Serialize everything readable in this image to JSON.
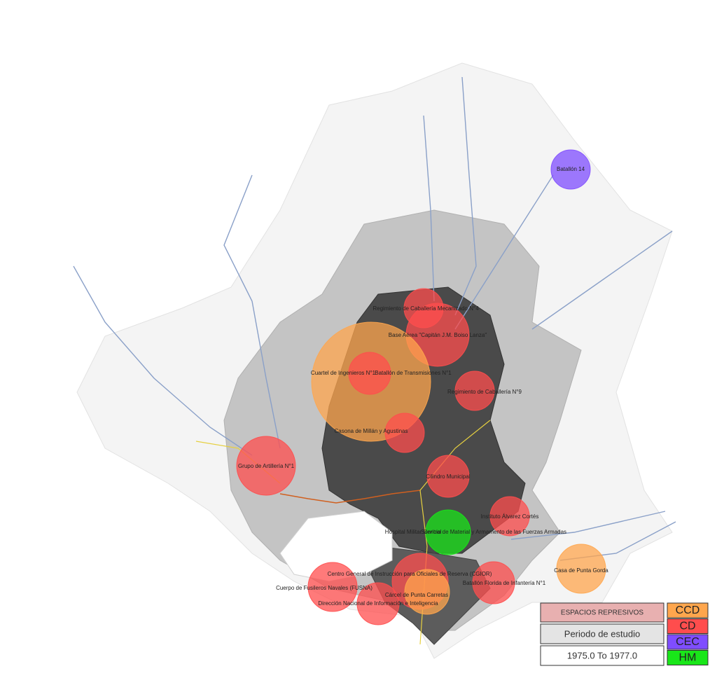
{
  "sites": [
    {
      "label": "Batallón 14",
      "type": "CEC"
    },
    {
      "label": "Regimiento de Caballería Mecanizado N°4",
      "type": "CD"
    },
    {
      "label": "Base Aérea \"Capitán J.M. Boiso Lanza\"",
      "type": "CD"
    },
    {
      "label": "Cuartel de Ingenieros N°1",
      "type": "CCD"
    },
    {
      "label": "Batallón de Transmisiones N°1",
      "type": "CD"
    },
    {
      "label": "Regimiento de Caballería N°9",
      "type": "CD"
    },
    {
      "label": "Casona de Millán y Agustinas",
      "type": "CD"
    },
    {
      "label": "Grupo de Artillería N°1",
      "type": "CD"
    },
    {
      "label": "Cilindro Municipal",
      "type": "CD"
    },
    {
      "label": "Instituto Álvarez Cortés",
      "type": "CD"
    },
    {
      "label": "Hospital Militar Central",
      "type": "HM"
    },
    {
      "label": "Servicio de Material y Armamento de las Fuerzas Armadas",
      "type": "CD"
    },
    {
      "label": "Casa de Punta Gorda",
      "type": "CCD"
    },
    {
      "label": "Centro General de Instrucción para Oficiales de Reserva (CGIOR)",
      "type": "CD"
    },
    {
      "label": "Batallón Florida de Infantería N°1",
      "type": "CD"
    },
    {
      "label": "Cuerpo de Fusileros Navales (FUSNA)",
      "type": "CD"
    },
    {
      "label": "Cárcel de Punta Carretas",
      "type": "CCD"
    },
    {
      "label": "Dirección Nacional de Información e Inteligencia",
      "type": "CD"
    }
  ],
  "legend": {
    "title": "ESPACIOS REPRESIVOS",
    "period_label": "Periodo de estudio",
    "period_value": "1975.0 To 1977.0",
    "categories": [
      {
        "code": "CCD",
        "color": "#ffa64d"
      },
      {
        "code": "CD",
        "color": "#ff4d4d"
      },
      {
        "code": "CEC",
        "color": "#7f4dff"
      },
      {
        "code": "HM",
        "color": "#19e619"
      }
    ]
  }
}
